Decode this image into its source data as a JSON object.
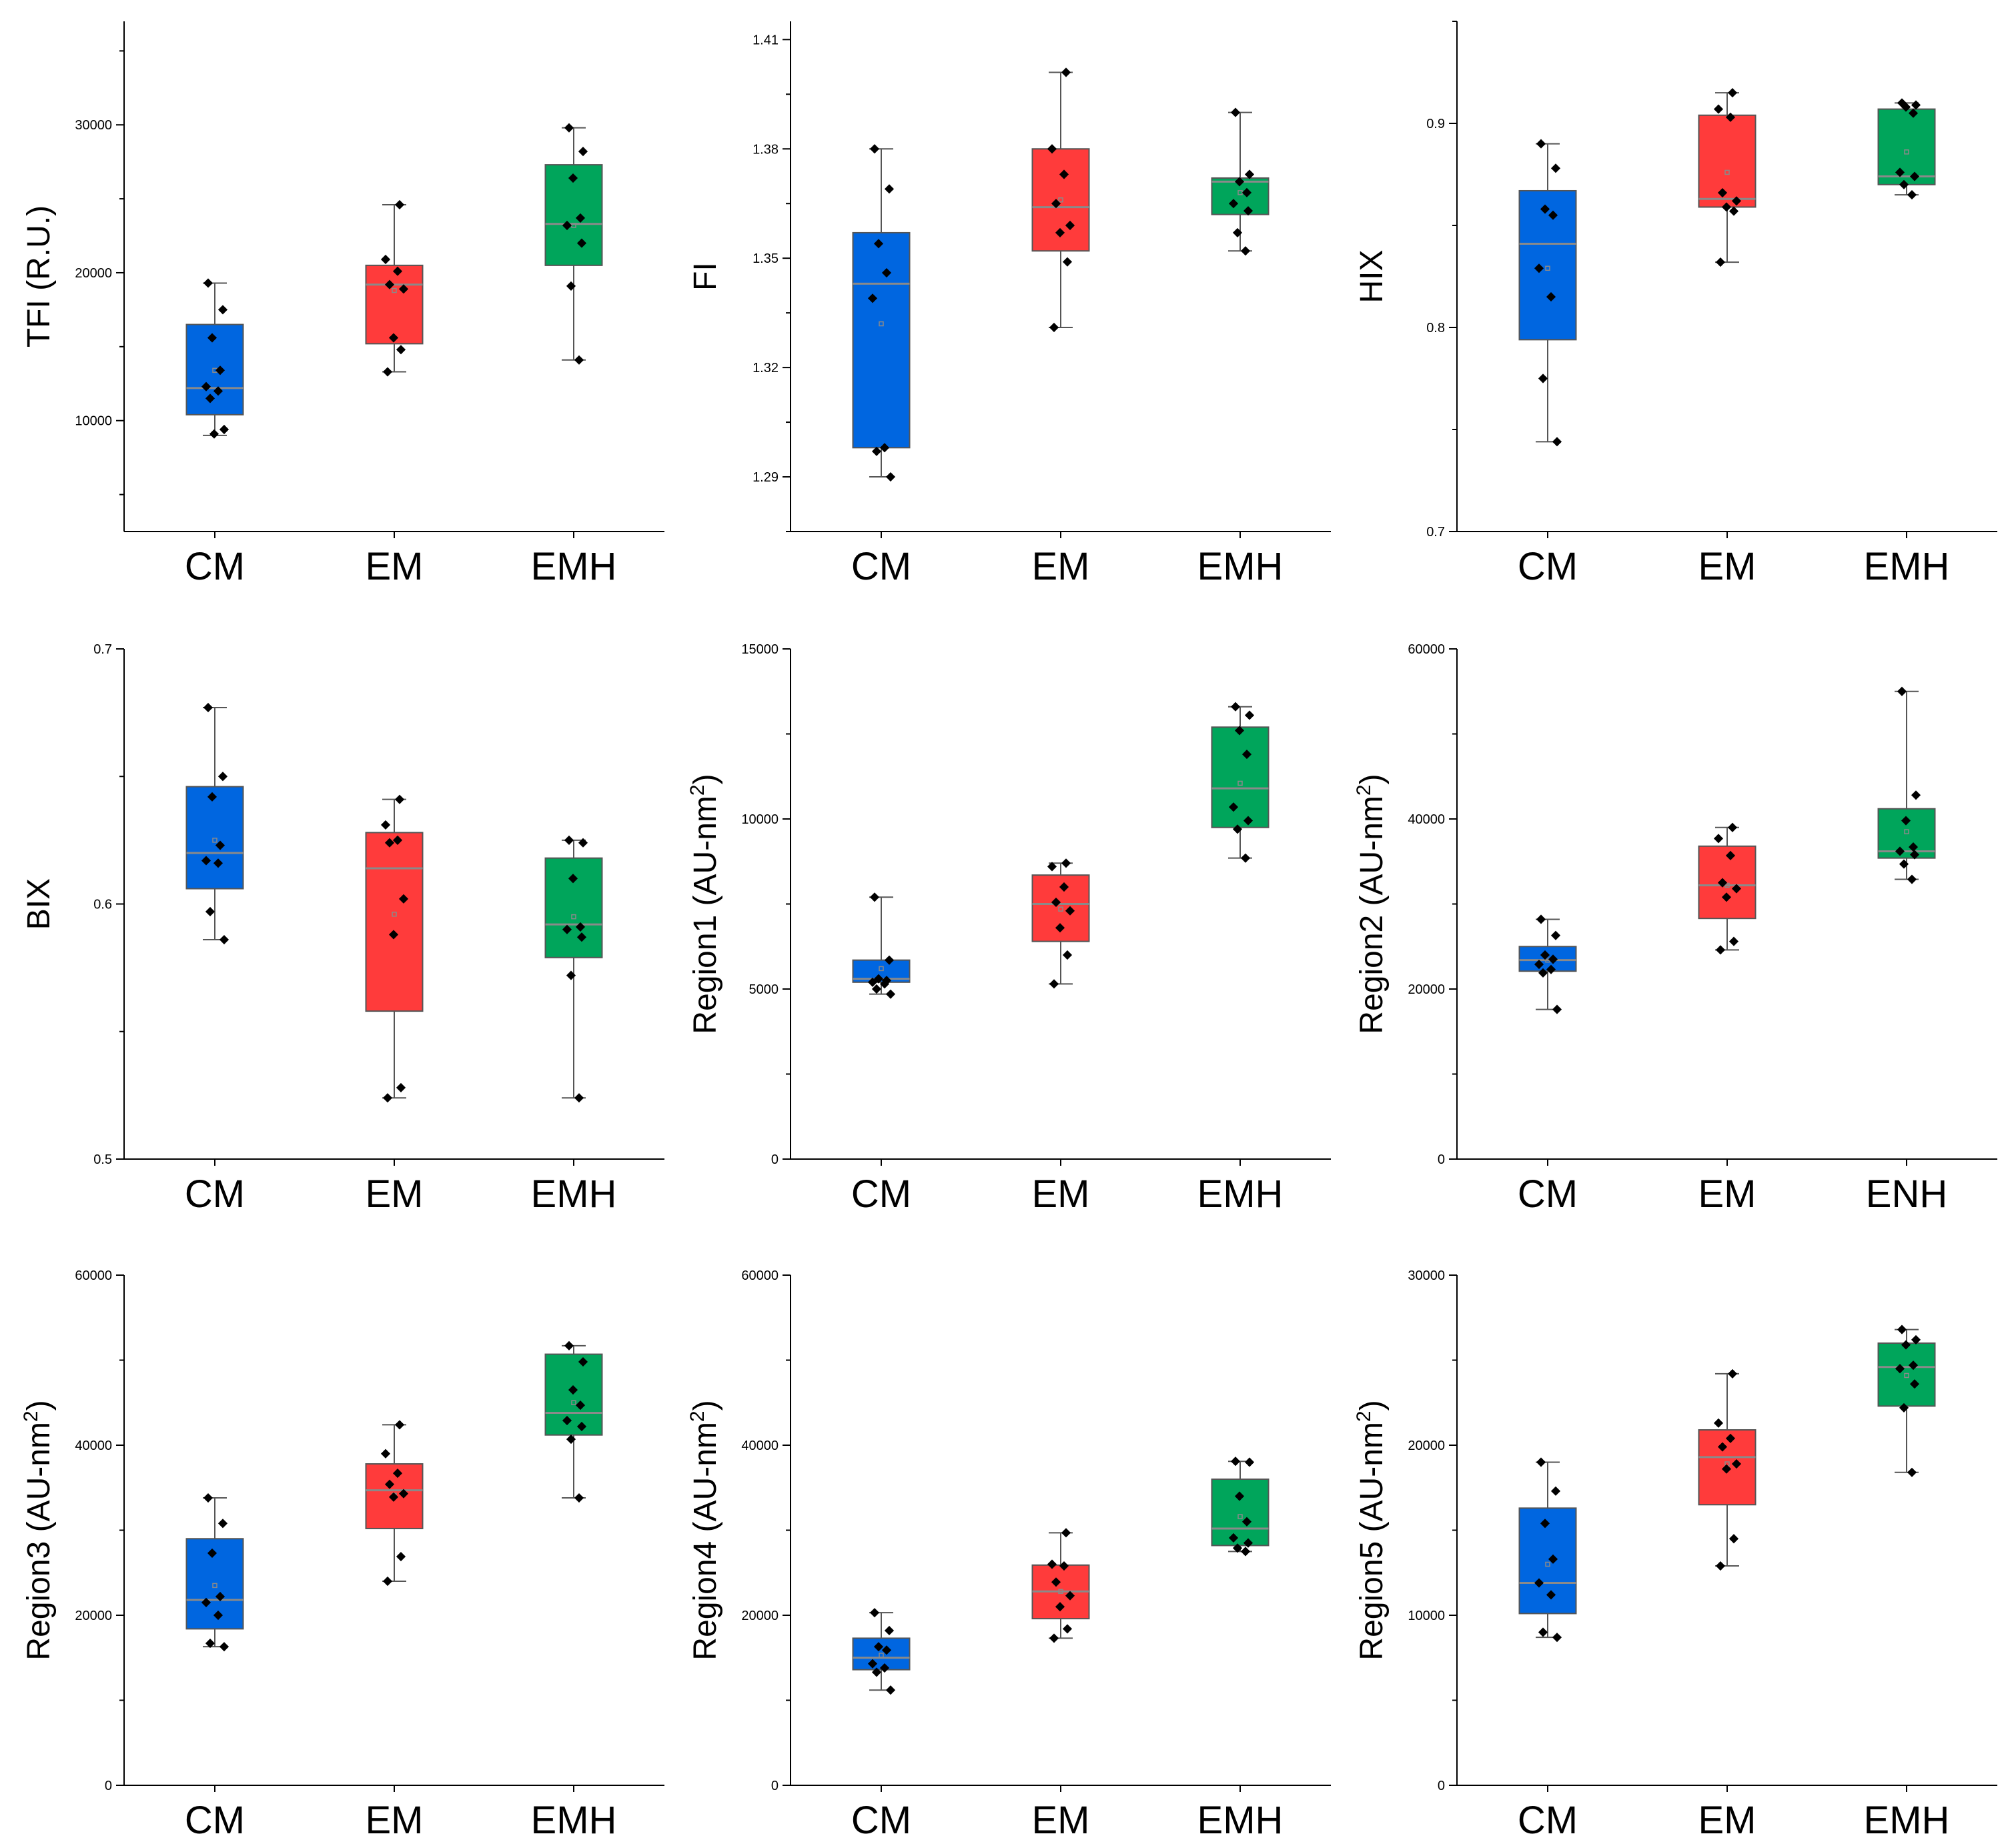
{
  "colors": {
    "CM": "#0066e0",
    "EM": "#ff3b3b",
    "EMH": "#00a55b",
    "frame": "#000000",
    "median": "#8a8a8a",
    "whisker": "#555555"
  },
  "chart_data": [
    {
      "type": "box",
      "ylabel": "TFI (R.U.)",
      "ylim": [
        2500,
        37000
      ],
      "yticks": [
        10000,
        20000,
        30000
      ],
      "minor_step": 5000,
      "categories": [
        "CM",
        "EM",
        "EMH"
      ],
      "boxes": [
        {
          "q1": 10400,
          "median": 12200,
          "q3": 16500,
          "min": 9000,
          "max": 19300,
          "mean": 13400,
          "points": [
            19300,
            17500,
            15600,
            13400,
            12300,
            12000,
            11500,
            9400,
            9100
          ]
        },
        {
          "q1": 15200,
          "median": 19200,
          "q3": 20500,
          "min": 13300,
          "max": 24600,
          "mean": 18800,
          "points": [
            24600,
            20900,
            20100,
            19200,
            18900,
            15600,
            14800,
            13300
          ]
        },
        {
          "q1": 20500,
          "median": 23300,
          "q3": 27300,
          "min": 14100,
          "max": 29800,
          "mean": 23200,
          "points": [
            29800,
            28200,
            26400,
            23700,
            23200,
            22000,
            19100,
            14100
          ]
        }
      ]
    },
    {
      "type": "box",
      "ylabel": "FI",
      "ylim": [
        1.275,
        1.415
      ],
      "yticks": [
        1.29,
        1.32,
        1.35,
        1.38,
        1.41
      ],
      "minor_step": 0.015,
      "categories": [
        "CM",
        "EM",
        "EMH"
      ],
      "boxes": [
        {
          "q1": 1.298,
          "median": 1.343,
          "q3": 1.357,
          "min": 1.29,
          "max": 1.38,
          "mean": 1.332,
          "points": [
            1.38,
            1.369,
            1.354,
            1.346,
            1.339,
            1.298,
            1.297,
            1.29
          ]
        },
        {
          "q1": 1.352,
          "median": 1.364,
          "q3": 1.38,
          "min": 1.331,
          "max": 1.401,
          "mean": 1.366,
          "points": [
            1.401,
            1.38,
            1.373,
            1.365,
            1.359,
            1.357,
            1.349,
            1.331
          ]
        },
        {
          "q1": 1.362,
          "median": 1.371,
          "q3": 1.372,
          "min": 1.352,
          "max": 1.39,
          "mean": 1.368,
          "points": [
            1.39,
            1.373,
            1.371,
            1.368,
            1.365,
            1.363,
            1.357,
            1.352
          ]
        }
      ]
    },
    {
      "type": "box",
      "ylabel": "HIX",
      "ylim": [
        0.7,
        0.95
      ],
      "yticks": [
        0.7,
        0.8,
        0.9
      ],
      "minor_step": 0.05,
      "categories": [
        "CM",
        "EM",
        "EMH"
      ],
      "boxes": [
        {
          "q1": 0.794,
          "median": 0.841,
          "q3": 0.867,
          "min": 0.744,
          "max": 0.89,
          "mean": 0.829,
          "points": [
            0.89,
            0.878,
            0.858,
            0.855,
            0.829,
            0.815,
            0.775,
            0.744
          ]
        },
        {
          "q1": 0.859,
          "median": 0.863,
          "q3": 0.904,
          "min": 0.832,
          "max": 0.915,
          "mean": 0.876,
          "points": [
            0.915,
            0.907,
            0.903,
            0.866,
            0.862,
            0.859,
            0.857,
            0.832
          ]
        },
        {
          "q1": 0.87,
          "median": 0.874,
          "q3": 0.907,
          "min": 0.865,
          "max": 0.91,
          "mean": 0.886,
          "points": [
            0.91,
            0.909,
            0.908,
            0.905,
            0.876,
            0.874,
            0.87,
            0.865
          ]
        }
      ]
    },
    {
      "type": "box",
      "ylabel": "BIX",
      "ylim": [
        0.5,
        0.7
      ],
      "yticks": [
        0.5,
        0.6,
        0.7
      ],
      "minor_step": 0.05,
      "categories": [
        "CM",
        "EM",
        "EMH"
      ],
      "boxes": [
        {
          "q1": 0.606,
          "median": 0.62,
          "q3": 0.646,
          "min": 0.586,
          "max": 0.677,
          "mean": 0.625,
          "points": [
            0.677,
            0.65,
            0.642,
            0.623,
            0.617,
            0.616,
            0.597,
            0.586
          ]
        },
        {
          "q1": 0.558,
          "median": 0.614,
          "q3": 0.628,
          "min": 0.524,
          "max": 0.641,
          "mean": 0.596,
          "points": [
            0.641,
            0.631,
            0.625,
            0.624,
            0.602,
            0.588,
            0.528,
            0.524
          ]
        },
        {
          "q1": 0.579,
          "median": 0.592,
          "q3": 0.618,
          "min": 0.524,
          "max": 0.625,
          "mean": 0.595,
          "points": [
            0.625,
            0.624,
            0.61,
            0.591,
            0.59,
            0.587,
            0.572,
            0.524
          ]
        }
      ]
    },
    {
      "type": "box",
      "ylabel": "Region1 (AU-nm",
      "ylabel_sup": "2",
      "ylabel_tail": ")",
      "ylim": [
        0,
        15000
      ],
      "yticks": [
        0,
        5000,
        10000,
        15000
      ],
      "minor_step": 2500,
      "categories": [
        "CM",
        "EM",
        "EMH"
      ],
      "boxes": [
        {
          "q1": 5200,
          "median": 5300,
          "q3": 5850,
          "min": 4850,
          "max": 7700,
          "mean": 5600,
          "points": [
            7700,
            5850,
            5300,
            5250,
            5200,
            5150,
            5000,
            4850
          ]
        },
        {
          "q1": 6400,
          "median": 7500,
          "q3": 8350,
          "min": 5150,
          "max": 8700,
          "mean": 7350,
          "points": [
            8700,
            8600,
            8000,
            7550,
            7300,
            6800,
            6000,
            5150
          ]
        },
        {
          "q1": 9750,
          "median": 10900,
          "q3": 12700,
          "min": 8850,
          "max": 13300,
          "mean": 11050,
          "points": [
            13300,
            13050,
            12600,
            11900,
            10350,
            9950,
            9700,
            8850
          ]
        }
      ]
    },
    {
      "type": "box",
      "ylabel": "Region2 (AU-nm",
      "ylabel_sup": "2",
      "ylabel_tail": ")",
      "ylim": [
        0,
        60000
      ],
      "yticks": [
        0,
        20000,
        40000,
        60000
      ],
      "minor_step": 10000,
      "categories": [
        "CM",
        "EM",
        "ENH"
      ],
      "boxes": [
        {
          "q1": 22100,
          "median": 23400,
          "q3": 25000,
          "min": 17600,
          "max": 28200,
          "mean": 23400,
          "points": [
            28200,
            26300,
            24000,
            23500,
            22900,
            22300,
            21900,
            17600
          ]
        },
        {
          "q1": 28300,
          "median": 32200,
          "q3": 36800,
          "min": 24600,
          "max": 39000,
          "mean": 32200,
          "points": [
            39000,
            37700,
            35700,
            32500,
            31800,
            30800,
            25600,
            24600
          ]
        },
        {
          "q1": 35400,
          "median": 36200,
          "q3": 41200,
          "min": 32900,
          "max": 55000,
          "mean": 38500,
          "points": [
            55000,
            42800,
            39800,
            36700,
            36200,
            35800,
            34700,
            32900
          ]
        }
      ]
    },
    {
      "type": "box",
      "ylabel": "Region3 (AU-nm",
      "ylabel_sup": "2",
      "ylabel_tail": ")",
      "ylim": [
        0,
        60000
      ],
      "yticks": [
        0,
        20000,
        40000,
        60000
      ],
      "minor_step": 10000,
      "categories": [
        "CM",
        "EM",
        "EMH"
      ],
      "boxes": [
        {
          "q1": 18400,
          "median": 21800,
          "q3": 29000,
          "min": 16300,
          "max": 33800,
          "mean": 23500,
          "points": [
            33800,
            30800,
            27300,
            22200,
            21500,
            20000,
            16700,
            16300
          ]
        },
        {
          "q1": 30200,
          "median": 34700,
          "q3": 37800,
          "min": 24000,
          "max": 42400,
          "mean": 34100,
          "points": [
            42400,
            39000,
            36700,
            35400,
            34300,
            33900,
            26900,
            24000
          ]
        },
        {
          "q1": 41200,
          "median": 43800,
          "q3": 50700,
          "min": 33800,
          "max": 51700,
          "mean": 45000,
          "points": [
            51700,
            49800,
            46500,
            44700,
            42900,
            42200,
            40700,
            33800
          ]
        }
      ]
    },
    {
      "type": "box",
      "ylabel": "Region4 (AU-nm",
      "ylabel_sup": "2",
      "ylabel_tail": ")",
      "ylim": [
        0,
        60000
      ],
      "yticks": [
        0,
        20000,
        40000,
        60000
      ],
      "minor_step": 10000,
      "categories": [
        "CM",
        "EM",
        "EMH"
      ],
      "boxes": [
        {
          "q1": 13600,
          "median": 15000,
          "q3": 17300,
          "min": 11200,
          "max": 20300,
          "mean": 15300,
          "points": [
            20300,
            18200,
            16300,
            15900,
            14300,
            13800,
            13300,
            11200
          ]
        },
        {
          "q1": 19600,
          "median": 22800,
          "q3": 25900,
          "min": 17300,
          "max": 29700,
          "mean": 22800,
          "points": [
            29700,
            26000,
            25800,
            23900,
            22300,
            21000,
            18400,
            17300
          ]
        },
        {
          "q1": 28200,
          "median": 30200,
          "q3": 36000,
          "min": 27500,
          "max": 38100,
          "mean": 31600,
          "points": [
            38100,
            38000,
            34000,
            31000,
            29100,
            28500,
            27900,
            27500
          ]
        }
      ]
    },
    {
      "type": "box",
      "ylabel": "Region5 (AU-nm",
      "ylabel_sup": "2",
      "ylabel_tail": ")",
      "ylim": [
        0,
        30000
      ],
      "yticks": [
        0,
        10000,
        20000,
        30000
      ],
      "minor_step": 5000,
      "categories": [
        "CM",
        "EM",
        "EMH"
      ],
      "boxes": [
        {
          "q1": 10100,
          "median": 11900,
          "q3": 16300,
          "min": 8700,
          "max": 19000,
          "mean": 13000,
          "points": [
            19000,
            17300,
            15400,
            13300,
            11900,
            11200,
            9000,
            8700
          ]
        },
        {
          "q1": 16500,
          "median": 19300,
          "q3": 20900,
          "min": 12900,
          "max": 24200,
          "mean": 18900,
          "points": [
            24200,
            21300,
            20400,
            19900,
            18900,
            18600,
            14500,
            12900
          ]
        },
        {
          "q1": 22300,
          "median": 24600,
          "q3": 26000,
          "min": 18400,
          "max": 26800,
          "mean": 24100,
          "points": [
            26800,
            26200,
            25900,
            24700,
            24500,
            23600,
            22200,
            18400
          ]
        }
      ]
    }
  ]
}
